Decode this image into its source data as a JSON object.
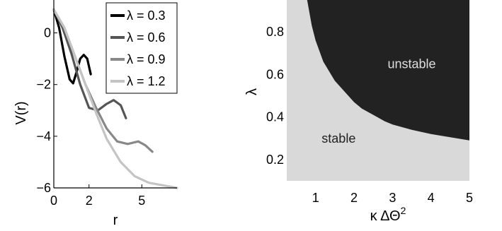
{
  "chart_data": [
    {
      "type": "line",
      "xlabel": "r",
      "ylabel": "V(r)",
      "xlim": [
        0,
        7
      ],
      "ylim": [
        -6,
        1
      ],
      "x_ticks": [
        "0",
        "2",
        "5"
      ],
      "x_tick_values": [
        0,
        2,
        5
      ],
      "y_ticks": [
        "0",
        "−2",
        "−4",
        "−6"
      ],
      "y_tick_values": [
        0,
        -2,
        -4,
        -6
      ],
      "legend_position": "top-right",
      "series": [
        {
          "name": "λ = 0.3",
          "color": "#000000",
          "x": [
            0.0,
            0.3,
            0.6,
            0.9,
            1.1,
            1.3,
            1.5,
            1.7,
            1.9,
            2.1
          ],
          "y": [
            0.9,
            0.2,
            -0.9,
            -1.8,
            -1.95,
            -1.5,
            -1.0,
            -0.85,
            -1.0,
            -1.6
          ]
        },
        {
          "name": "λ = 0.6",
          "color": "#555555",
          "x": [
            0.0,
            0.5,
            1.0,
            1.5,
            2.0,
            2.5,
            3.0,
            3.4,
            3.8,
            4.1
          ],
          "y": [
            0.9,
            0.2,
            -0.8,
            -2.0,
            -2.9,
            -3.0,
            -2.75,
            -2.6,
            -2.8,
            -3.3
          ]
        },
        {
          "name": "λ = 0.9",
          "color": "#888888",
          "x": [
            0.0,
            0.6,
            1.2,
            1.8,
            2.4,
            3.0,
            3.6,
            4.2,
            4.8,
            5.2,
            5.6
          ],
          "y": [
            0.9,
            0.2,
            -0.9,
            -2.0,
            -2.9,
            -3.7,
            -4.2,
            -4.3,
            -4.2,
            -4.35,
            -4.6
          ]
        },
        {
          "name": "λ = 1.2",
          "color": "#c4c4c4",
          "x": [
            0.0,
            0.6,
            1.2,
            1.8,
            2.4,
            3.0,
            3.8,
            4.6,
            5.4,
            6.2,
            7.0
          ],
          "y": [
            0.9,
            0.2,
            -0.9,
            -2.0,
            -3.1,
            -4.1,
            -5.0,
            -5.55,
            -5.8,
            -5.9,
            -6.0
          ]
        }
      ]
    },
    {
      "type": "area",
      "xlabel": "κ ΔΘ",
      "xlabel_superscript": "2",
      "ylabel": "λ",
      "xlim": [
        0.25,
        5
      ],
      "ylim": [
        0.1,
        0.95
      ],
      "x_ticks": [
        "1",
        "2",
        "3",
        "4",
        "5"
      ],
      "x_tick_values": [
        1,
        2,
        3,
        4,
        5
      ],
      "y_ticks": [
        "0.2",
        "0.4",
        "0.6",
        "0.8"
      ],
      "y_tick_values": [
        0.2,
        0.4,
        0.6,
        0.8
      ],
      "boundary": {
        "x": [
          0.78,
          0.9,
          1.0,
          1.2,
          1.5,
          1.8,
          2.0,
          2.2,
          2.5,
          2.8,
          3.0,
          3.5,
          4.0,
          4.5,
          5.0
        ],
        "y": [
          0.95,
          0.83,
          0.76,
          0.66,
          0.57,
          0.51,
          0.47,
          0.44,
          0.41,
          0.38,
          0.365,
          0.34,
          0.32,
          0.305,
          0.29
        ]
      },
      "regions": [
        {
          "label": "unstable",
          "fill": "#222222",
          "text_color": "#dddddd",
          "label_x": 3.5,
          "label_y": 0.65
        },
        {
          "label": "stable",
          "fill": "#d9d9d9",
          "text_color": "#222222",
          "label_x": 1.6,
          "label_y": 0.3
        }
      ]
    }
  ]
}
